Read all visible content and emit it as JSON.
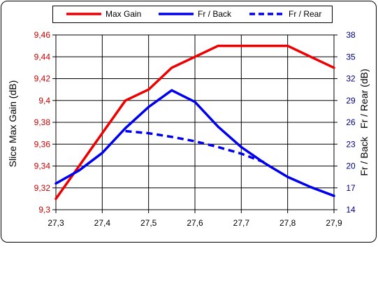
{
  "chart_data": {
    "type": "line",
    "x": [
      27.3,
      27.35,
      27.4,
      27.45,
      27.5,
      27.55,
      27.6,
      27.65,
      27.7,
      27.75,
      27.8,
      27.85,
      27.9
    ],
    "x_tick_labels": [
      "27,3",
      "27,4",
      "27,5",
      "27,6",
      "27,7",
      "27,8",
      "27,9"
    ],
    "x_ticks": [
      27.3,
      27.4,
      27.5,
      27.6,
      27.7,
      27.8,
      27.9
    ],
    "xlim": [
      27.3,
      27.9
    ],
    "ylabel_left": "Slice Max Gain (dB)",
    "ylabel_right": "Fr / Back   Fr / Rear (dB)",
    "ylim_left": [
      9.3,
      9.46
    ],
    "y_ticks_left": [
      9.3,
      9.32,
      9.34,
      9.36,
      9.38,
      9.4,
      9.42,
      9.44,
      9.46
    ],
    "y_tick_labels_left": [
      "9,3",
      "9,32",
      "9,34",
      "9,36",
      "9,38",
      "9,4",
      "9,42",
      "9,44",
      "9,46"
    ],
    "ylim_right": [
      14,
      38
    ],
    "y_ticks_right": [
      14,
      17,
      20,
      23,
      26,
      29,
      32,
      35,
      38
    ],
    "y_tick_labels_right": [
      "14",
      "17",
      "20",
      "23",
      "26",
      "29",
      "32",
      "35",
      "38"
    ],
    "grid": true,
    "legend_position": "top",
    "series": [
      {
        "name": "Max Gain",
        "axis": "left",
        "color": "#ee0000",
        "style": "solid",
        "x": [
          27.3,
          27.35,
          27.4,
          27.45,
          27.5,
          27.55,
          27.6,
          27.65,
          27.7,
          27.75,
          27.8,
          27.85,
          27.9
        ],
        "values": [
          9.31,
          9.34,
          9.37,
          9.4,
          9.41,
          9.43,
          9.44,
          9.45,
          9.45,
          9.45,
          9.45,
          9.44,
          9.43
        ]
      },
      {
        "name": "Fr / Back",
        "axis": "right",
        "color": "#0000ee",
        "style": "solid",
        "x": [
          27.3,
          27.35,
          27.4,
          27.45,
          27.5,
          27.55,
          27.6,
          27.65,
          27.7,
          27.75,
          27.8,
          27.85,
          27.9
        ],
        "values": [
          17.6,
          19.4,
          21.8,
          25.2,
          28.1,
          30.4,
          28.8,
          25.4,
          22.6,
          20.4,
          18.5,
          17.1,
          15.9
        ]
      },
      {
        "name": "Fr / Rear",
        "axis": "right",
        "color": "#0000ee",
        "style": "dashed",
        "x": [
          27.45,
          27.5,
          27.55,
          27.6,
          27.65,
          27.7,
          27.75
        ],
        "values": [
          24.8,
          24.5,
          24.0,
          23.4,
          22.6,
          21.7,
          20.5
        ]
      }
    ]
  }
}
